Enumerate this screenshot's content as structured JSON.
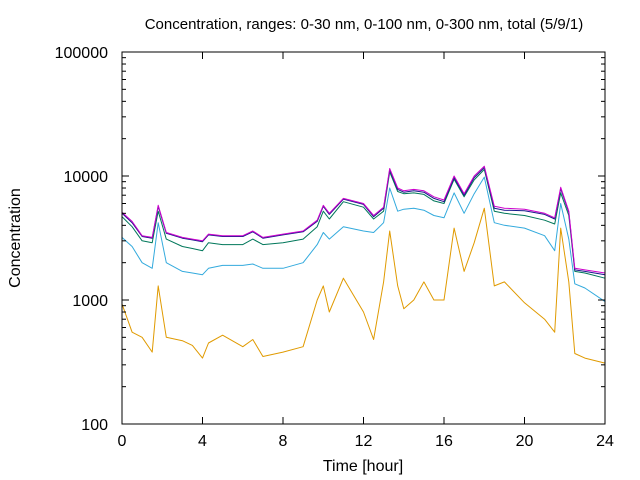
{
  "chart_data": {
    "type": "line",
    "title": "Concentration, ranges: 0-30 nm, 0-100 nm, 0-300 nm, total (5/9/1)",
    "xlabel": "Time [hour]",
    "ylabel": "Concentration",
    "xlim": [
      0,
      24
    ],
    "ylim": [
      100,
      100000
    ],
    "yscale": "log",
    "grid": false,
    "legend": "none",
    "x_ticks": [
      0,
      4,
      8,
      12,
      16,
      20,
      24
    ],
    "y_ticks": [
      100,
      1000,
      10000,
      100000
    ],
    "x_tick_labels": [
      "0",
      "4",
      "8",
      "12",
      "16",
      "20",
      "24"
    ],
    "y_tick_labels": [
      "100",
      "1000",
      "10000",
      "100000"
    ],
    "x": [
      0,
      0.5,
      1,
      1.5,
      1.8,
      2.2,
      3,
      3.5,
      4,
      4.3,
      5,
      6,
      6.5,
      7,
      8,
      9,
      9.7,
      10,
      10.3,
      11,
      12,
      12.5,
      13,
      13.3,
      13.7,
      14,
      14.5,
      15,
      15.5,
      16,
      16.5,
      17,
      17.5,
      18,
      18.5,
      19,
      20,
      21,
      21.5,
      21.8,
      22.2,
      22.5,
      23,
      24
    ],
    "series": [
      {
        "color": "#cc00cc",
        "values": [
          5100,
          4300,
          3300,
          3200,
          5800,
          3500,
          3200,
          3100,
          3000,
          3400,
          3300,
          3300,
          3600,
          3200,
          3400,
          3600,
          4400,
          5800,
          5000,
          6600,
          6000,
          4800,
          5600,
          11500,
          8000,
          7600,
          7800,
          7600,
          6800,
          6400,
          10000,
          7200,
          10000,
          12000,
          5700,
          5500,
          5400,
          5000,
          4600,
          8100,
          5200,
          1800,
          1750,
          1650
        ]
      },
      {
        "color": "#1a1a8c",
        "values": [
          5000,
          4200,
          3250,
          3150,
          5700,
          3450,
          3150,
          3050,
          2950,
          3350,
          3250,
          3250,
          3550,
          3150,
          3350,
          3550,
          4300,
          5700,
          4900,
          6500,
          5900,
          4700,
          5500,
          11200,
          7800,
          7400,
          7600,
          7400,
          6600,
          6200,
          9700,
          7000,
          9700,
          11700,
          5500,
          5300,
          5250,
          4900,
          4500,
          7900,
          5100,
          1750,
          1700,
          1600
        ]
      },
      {
        "color": "#00775a",
        "values": [
          4700,
          3900,
          3000,
          2900,
          5200,
          3100,
          2700,
          2600,
          2500,
          2900,
          2800,
          2800,
          3100,
          2800,
          2900,
          3100,
          3900,
          5200,
          4500,
          6200,
          5600,
          4500,
          5200,
          10800,
          7500,
          7200,
          7300,
          7100,
          6300,
          6000,
          9400,
          6800,
          9300,
          11300,
          5200,
          5000,
          4800,
          4400,
          4100,
          7300,
          4800,
          1700,
          1650,
          1500
        ]
      },
      {
        "color": "#33aadd",
        "values": [
          3200,
          2700,
          2000,
          1800,
          4200,
          2000,
          1700,
          1650,
          1600,
          1800,
          1900,
          1900,
          1950,
          1800,
          1800,
          2000,
          2800,
          3500,
          3100,
          3900,
          3600,
          3500,
          4200,
          8000,
          5200,
          5400,
          5500,
          5300,
          4800,
          4600,
          7300,
          5000,
          7200,
          9800,
          4200,
          4000,
          3800,
          3300,
          2500,
          6000,
          3100,
          1350,
          1250,
          970
        ]
      },
      {
        "color": "#e09a00",
        "values": [
          930,
          550,
          500,
          380,
          1300,
          500,
          470,
          430,
          340,
          450,
          520,
          420,
          480,
          350,
          380,
          420,
          1000,
          1300,
          800,
          1500,
          800,
          480,
          1400,
          3600,
          1300,
          850,
          1000,
          1400,
          1000,
          1000,
          3800,
          1700,
          2900,
          5500,
          1300,
          1400,
          950,
          700,
          550,
          3800,
          1400,
          370,
          340,
          310
        ]
      }
    ]
  }
}
